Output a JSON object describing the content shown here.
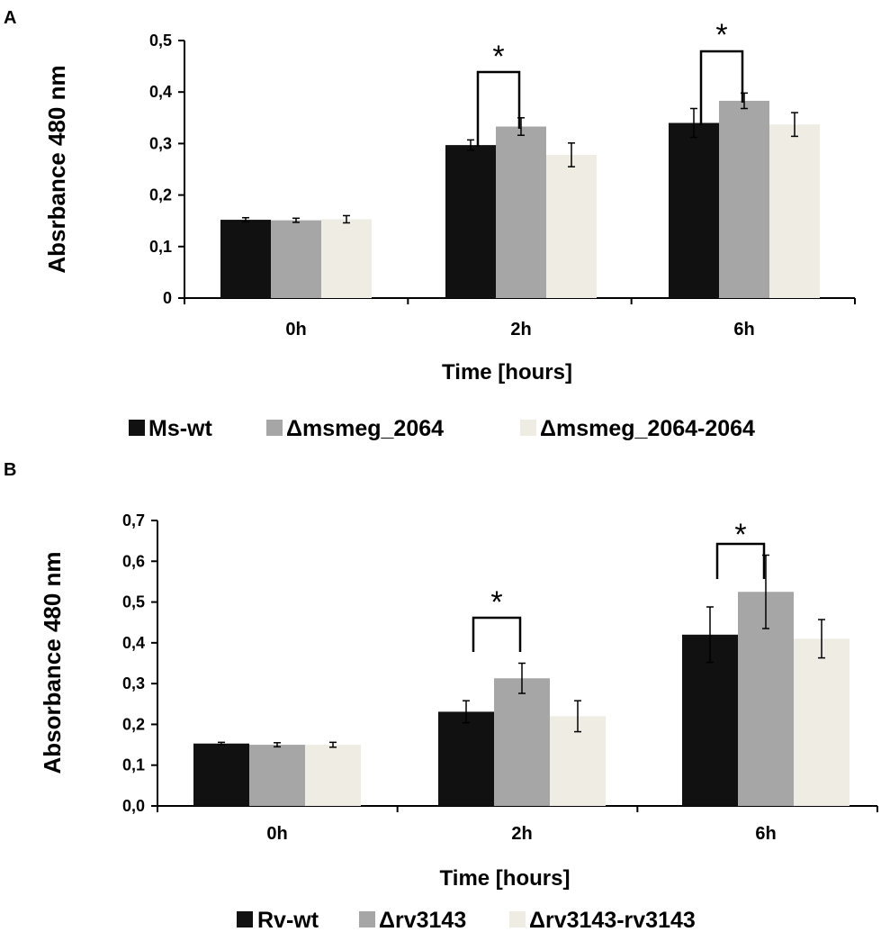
{
  "chart_data": [
    {
      "panel": "A",
      "type": "bar",
      "title": "",
      "xlabel": "Time [hours]",
      "ylabel": "Absrbance 480 nm",
      "ylim": [
        0,
        0.5
      ],
      "yticks": [
        "0",
        "0,1",
        "0,2",
        "0,3",
        "0,4",
        "0,5"
      ],
      "categories": [
        "0h",
        "2h",
        "6h"
      ],
      "series": [
        {
          "name": "Ms-wt",
          "color": "#111111",
          "values": [
            0.152,
            0.297,
            0.34
          ],
          "errors": [
            0.004,
            0.01,
            0.028
          ]
        },
        {
          "name": "Δmsmeg_2064",
          "color": "#a6a6a6",
          "values": [
            0.151,
            0.333,
            0.383
          ],
          "errors": [
            0.004,
            0.017,
            0.015
          ]
        },
        {
          "name": "Δmsmeg_2064-2064",
          "color": "#eeece3",
          "values": [
            0.153,
            0.278,
            0.337
          ],
          "errors": [
            0.007,
            0.023,
            0.023
          ]
        }
      ],
      "annotations": [
        {
          "text": "*",
          "category": "2h",
          "between": [
            0,
            1
          ]
        },
        {
          "text": "*",
          "category": "6h",
          "between": [
            0,
            1
          ]
        }
      ],
      "legend_position": "bottom"
    },
    {
      "panel": "B",
      "type": "bar",
      "title": "",
      "xlabel": "Time [hours]",
      "ylabel": "Absorbance 480 nm",
      "ylim": [
        0,
        0.7
      ],
      "yticks": [
        "0,0",
        "0,1",
        "0,2",
        "0,3",
        "0,4",
        "0,5",
        "0,6",
        "0,7"
      ],
      "categories": [
        "0h",
        "2h",
        "6h"
      ],
      "series": [
        {
          "name": "Rv-wt",
          "color": "#111111",
          "values": [
            0.153,
            0.231,
            0.42
          ],
          "errors": [
            0.003,
            0.027,
            0.068
          ]
        },
        {
          "name": "Δrv3143",
          "color": "#a6a6a6",
          "values": [
            0.15,
            0.313,
            0.525
          ],
          "errors": [
            0.005,
            0.037,
            0.09
          ]
        },
        {
          "name": "Δrv3143-rv3143",
          "color": "#eeece3",
          "values": [
            0.15,
            0.22,
            0.41
          ],
          "errors": [
            0.006,
            0.038,
            0.047
          ]
        }
      ],
      "annotations": [
        {
          "text": "*",
          "category": "2h",
          "between": [
            0,
            1
          ]
        },
        {
          "text": "*",
          "category": "6h",
          "between": [
            0,
            1
          ]
        }
      ],
      "legend_position": "bottom"
    }
  ]
}
